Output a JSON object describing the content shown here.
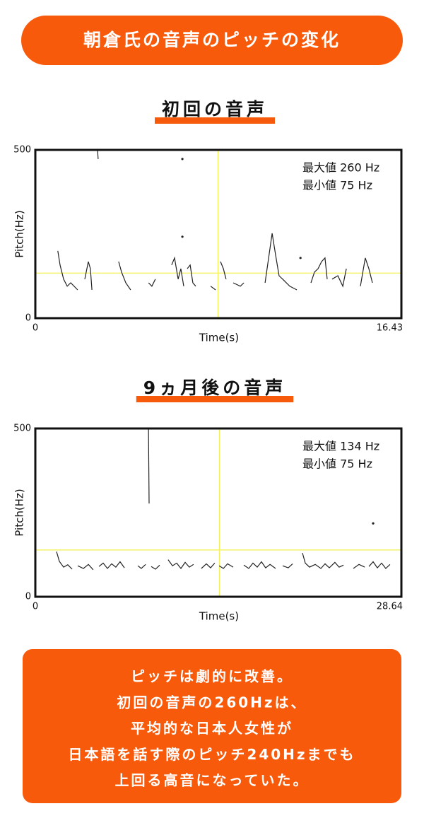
{
  "header": {
    "title": "朝倉氏の音声のピッチの変化"
  },
  "chart_data": [
    {
      "type": "line",
      "title": "初回の音声",
      "xlabel": "Time(s)",
      "ylabel": "Pitch(Hz)",
      "xlim": [
        0,
        16.43
      ],
      "ylim": [
        0,
        500
      ],
      "xticks": [
        0,
        16.43
      ],
      "yticks": [
        0,
        500
      ],
      "annotations": [
        "最大値 260 Hz",
        "最小値 75 Hz"
      ],
      "crosshair": {
        "x": 8.2,
        "y": 134,
        "color": "#f2f25a"
      },
      "series": [
        {
          "color": "#222222",
          "x": [
            1.01,
            1.11,
            1.27,
            1.43,
            1.59,
            1.9,
            null,
            2.22,
            2.38,
            2.47,
            2.54,
            null,
            2.79,
            2.82,
            null,
            3.74,
            3.87,
            4.06,
            4.28,
            null,
            5.08,
            5.23,
            5.39,
            null,
            6.12,
            6.25,
            6.41,
            6.53,
            6.66,
            null,
            6.82,
            6.95,
            7.07,
            7.2,
            null,
            7.87,
            8.09,
            null,
            8.31,
            8.44,
            8.56,
            null,
            8.88,
            9.2,
            9.36,
            null,
            10.31,
            10.63,
            10.78,
            10.94,
            11.1,
            11.42,
            11.74,
            null,
            12.37,
            12.53,
            12.69,
            12.85,
            13.0,
            13.1,
            null,
            13.32,
            13.58,
            13.8,
            13.96,
            null,
            14.59,
            14.81,
            14.97,
            15.13,
            null,
            6.6,
            null,
            6.6,
            null,
            11.9
          ],
          "values": [
            200,
            158,
            116,
            95,
            105,
            84,
            null,
            116,
            168,
            147,
            84,
            null,
            500,
            473,
            null,
            168,
            137,
            105,
            84,
            null,
            105,
            95,
            116,
            null,
            158,
            179,
            116,
            147,
            95,
            null,
            147,
            158,
            105,
            95,
            null,
            95,
            84,
            null,
            168,
            147,
            116,
            null,
            105,
            95,
            105,
            null,
            105,
            252,
            189,
            126,
            116,
            95,
            84,
            null,
            105,
            137,
            147,
            168,
            179,
            116,
            null,
            116,
            126,
            95,
            147,
            null,
            95,
            179,
            147,
            105,
            null,
            473,
            null,
            242,
            null,
            179
          ]
        }
      ]
    },
    {
      "type": "line",
      "title": "9ヵ月後の音声",
      "xlabel": "Time(s)",
      "ylabel": "Pitch(Hz)",
      "xlim": [
        0,
        28.64
      ],
      "ylim": [
        0,
        500
      ],
      "xticks": [
        0,
        28.64
      ],
      "yticks": [
        0,
        500
      ],
      "annotations": [
        "最大値 134 Hz",
        "最小値 75 Hz"
      ],
      "crosshair": {
        "x": 14.4,
        "y": 139,
        "color": "#f2f25a"
      },
      "series": [
        {
          "color": "#222222",
          "x": [
            1.66,
            1.88,
            2.21,
            2.54,
            2.88,
            null,
            3.32,
            3.76,
            4.15,
            4.53,
            null,
            4.98,
            5.31,
            5.64,
            5.97,
            6.3,
            6.63,
            6.97,
            null,
            8.02,
            8.29,
            8.63,
            null,
            8.85,
            8.9,
            null,
            9.07,
            9.4,
            9.73,
            null,
            10.39,
            10.73,
            11.06,
            11.39,
            11.72,
            12.05,
            12.38,
            null,
            12.99,
            13.38,
            13.71,
            14.04,
            null,
            14.38,
            14.71,
            15.04,
            15.48,
            null,
            16.31,
            16.7,
            17.03,
            17.36,
            17.69,
            18.02,
            18.36,
            18.8,
            null,
            19.35,
            19.79,
            20.13,
            null,
            20.9,
            21.12,
            21.45,
            21.9,
            22.34,
            22.67,
            23.0,
            23.44,
            23.77,
            24.11,
            null,
            24.88,
            25.32,
            25.77,
            null,
            26.1,
            26.43,
            26.76,
            27.09,
            27.42,
            27.75,
            null,
            26.43
          ],
          "values": [
            134,
            105,
            88,
            95,
            82,
            null,
            92,
            84,
            96,
            80,
            null,
            90,
            100,
            84,
            98,
            88,
            104,
            86,
            null,
            92,
            84,
            96,
            null,
            500,
            277,
            null,
            90,
            82,
            94,
            null,
            110,
            92,
            100,
            84,
            102,
            88,
            96,
            null,
            84,
            98,
            86,
            100,
            null,
            92,
            84,
            98,
            88,
            null,
            94,
            84,
            100,
            88,
            104,
            86,
            96,
            84,
            null,
            92,
            86,
            98,
            null,
            130,
            100,
            88,
            96,
            84,
            98,
            86,
            102,
            88,
            94,
            null,
            84,
            96,
            88,
            null,
            90,
            104,
            86,
            100,
            84,
            96,
            null,
            218
          ]
        }
      ]
    }
  ],
  "summary": {
    "lines": [
      "ピッチは劇的に改善。",
      "初回の音声の260Hzは、",
      "平均的な日本人女性が",
      "日本語を話す際のピッチ240Hzまでも",
      "上回る高音になっていた。"
    ]
  }
}
